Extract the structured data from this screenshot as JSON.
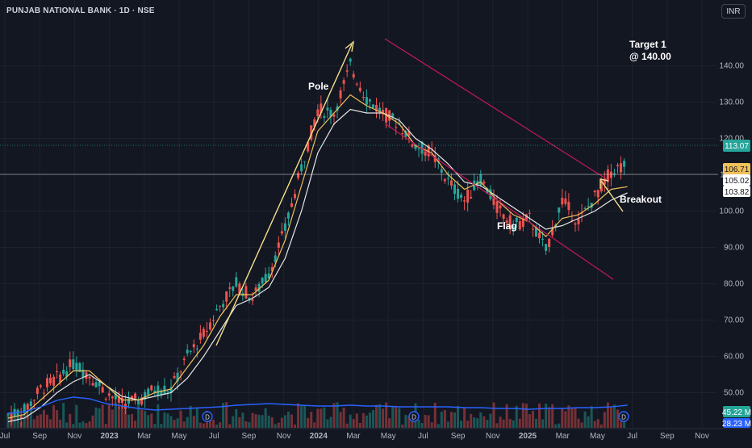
{
  "header": {
    "title": "PUNJAB NATIONAL BANK · 1D · NSE",
    "currency_button": "INR"
  },
  "colors": {
    "background": "#131722",
    "grid": "#1e222d",
    "axis_text": "#b2b5be",
    "price_up": "#26a69a",
    "price_down": "#ef5350",
    "ma_fast": "#f0c05a",
    "ma_slow": "#e6e6e6",
    "channel": "#c2185b",
    "pole_arrow": "#f5e08a",
    "volume_ma": "#2962ff",
    "last_price_tag": "#26a69a",
    "ma_fast_tag": "#f0c05a"
  },
  "annotations": {
    "pole": "Pole",
    "flag": "Flag",
    "breakout": "Breakout",
    "target_line1": "Target 1",
    "target_line2": "@ 140.00"
  },
  "price_tags": {
    "last": "113.07",
    "ma_fast": "106.71",
    "ma_slow_1": "105.02",
    "ma_slow_2": "103.82",
    "volume_1": "45.22 M",
    "volume_2": "28.23 M"
  },
  "event_markers": [
    "D",
    "D",
    "D"
  ],
  "chart_data": {
    "type": "candlestick",
    "title": "PUNJAB NATIONAL BANK · 1D · NSE",
    "y_ticks": [
      50,
      60,
      70,
      80,
      90,
      100,
      110,
      120,
      130,
      140
    ],
    "ylim": [
      41,
      151
    ],
    "x_ticks": [
      "Jul",
      "Sep",
      "Nov",
      "2023",
      "Mar",
      "May",
      "Jul",
      "Sep",
      "Nov",
      "2024",
      "Mar",
      "May",
      "Jul",
      "Sep",
      "Nov",
      "2025",
      "Mar",
      "May",
      "Jul",
      "Sep",
      "Nov"
    ],
    "series": [
      {
        "name": "close",
        "points": [
          [
            0,
            44
          ],
          [
            1,
            45
          ],
          [
            2,
            51
          ],
          [
            3,
            54
          ],
          [
            4,
            58
          ],
          [
            5,
            55
          ],
          [
            6,
            50
          ],
          [
            7,
            47
          ],
          [
            8,
            48
          ],
          [
            9,
            51
          ],
          [
            10,
            51
          ],
          [
            11,
            60
          ],
          [
            12,
            66
          ],
          [
            13,
            74
          ],
          [
            14,
            80
          ],
          [
            15,
            76
          ],
          [
            16,
            83
          ],
          [
            17,
            95
          ],
          [
            18,
            112
          ],
          [
            19,
            128
          ],
          [
            20,
            127
          ],
          [
            21,
            140
          ],
          [
            22,
            131
          ],
          [
            23,
            127
          ],
          [
            24,
            124
          ],
          [
            25,
            118
          ],
          [
            26,
            116
          ],
          [
            27,
            108
          ],
          [
            28,
            103
          ],
          [
            29,
            109
          ],
          [
            30,
            101
          ],
          [
            31,
            96
          ],
          [
            32,
            98
          ],
          [
            33,
            89
          ],
          [
            34,
            103
          ],
          [
            35,
            97
          ],
          [
            36,
            104
          ],
          [
            37,
            111
          ],
          [
            38,
            113.07
          ]
        ]
      },
      {
        "name": "ma_fast",
        "points": [
          [
            0,
            43
          ],
          [
            1,
            44
          ],
          [
            2,
            48
          ],
          [
            3,
            52
          ],
          [
            4,
            56
          ],
          [
            5,
            56
          ],
          [
            6,
            52
          ],
          [
            7,
            48
          ],
          [
            8,
            48
          ],
          [
            9,
            50
          ],
          [
            10,
            51
          ],
          [
            11,
            57
          ],
          [
            12,
            63
          ],
          [
            13,
            71
          ],
          [
            14,
            77
          ],
          [
            15,
            77
          ],
          [
            16,
            81
          ],
          [
            17,
            92
          ],
          [
            18,
            107
          ],
          [
            19,
            122
          ],
          [
            20,
            127
          ],
          [
            21,
            132
          ],
          [
            22,
            129
          ],
          [
            23,
            127
          ],
          [
            24,
            124
          ],
          [
            25,
            118
          ],
          [
            26,
            116
          ],
          [
            27,
            110
          ],
          [
            28,
            106
          ],
          [
            29,
            108
          ],
          [
            30,
            103
          ],
          [
            31,
            99
          ],
          [
            32,
            97
          ],
          [
            33,
            93
          ],
          [
            34,
            98
          ],
          [
            35,
            99
          ],
          [
            36,
            102
          ],
          [
            37,
            106
          ],
          [
            38,
            106.71
          ]
        ]
      },
      {
        "name": "ma_slow",
        "points": [
          [
            0,
            42
          ],
          [
            1,
            43
          ],
          [
            2,
            46
          ],
          [
            3,
            50
          ],
          [
            4,
            53
          ],
          [
            5,
            55
          ],
          [
            6,
            52
          ],
          [
            7,
            49
          ],
          [
            8,
            48
          ],
          [
            9,
            49
          ],
          [
            10,
            50
          ],
          [
            11,
            54
          ],
          [
            12,
            60
          ],
          [
            13,
            67
          ],
          [
            14,
            74
          ],
          [
            15,
            76
          ],
          [
            16,
            79
          ],
          [
            17,
            87
          ],
          [
            18,
            100
          ],
          [
            19,
            116
          ],
          [
            20,
            124
          ],
          [
            21,
            128
          ],
          [
            22,
            127
          ],
          [
            23,
            127
          ],
          [
            24,
            125
          ],
          [
            25,
            120
          ],
          [
            26,
            117
          ],
          [
            27,
            113
          ],
          [
            28,
            108
          ],
          [
            29,
            107
          ],
          [
            30,
            104
          ],
          [
            31,
            101
          ],
          [
            32,
            98
          ],
          [
            33,
            95
          ],
          [
            34,
            96
          ],
          [
            35,
            98
          ],
          [
            36,
            100
          ],
          [
            37,
            103
          ],
          [
            38,
            105.02
          ]
        ]
      },
      {
        "name": "volume_ma",
        "points": [
          [
            0,
            18
          ],
          [
            1,
            20
          ],
          [
            2,
            26
          ],
          [
            3,
            34
          ],
          [
            4,
            38
          ],
          [
            5,
            36
          ],
          [
            6,
            30
          ],
          [
            7,
            27
          ],
          [
            8,
            24
          ],
          [
            9,
            22
          ],
          [
            10,
            23
          ],
          [
            11,
            24
          ],
          [
            12,
            25
          ],
          [
            13,
            26
          ],
          [
            14,
            28
          ],
          [
            15,
            29
          ],
          [
            16,
            30
          ],
          [
            17,
            29
          ],
          [
            18,
            28
          ],
          [
            19,
            27
          ],
          [
            20,
            27
          ],
          [
            21,
            28
          ],
          [
            22,
            27
          ],
          [
            23,
            27
          ],
          [
            24,
            26
          ],
          [
            25,
            26
          ],
          [
            26,
            26
          ],
          [
            27,
            26
          ],
          [
            28,
            25
          ],
          [
            29,
            25
          ],
          [
            30,
            24
          ],
          [
            31,
            24
          ],
          [
            32,
            23
          ],
          [
            33,
            24
          ],
          [
            34,
            24
          ],
          [
            35,
            25
          ],
          [
            36,
            25
          ],
          [
            37,
            26
          ],
          [
            38,
            28
          ]
        ]
      }
    ],
    "annotations": [
      "Pole",
      "Flag",
      "Breakout",
      "Target 1 @ 140.00"
    ]
  }
}
